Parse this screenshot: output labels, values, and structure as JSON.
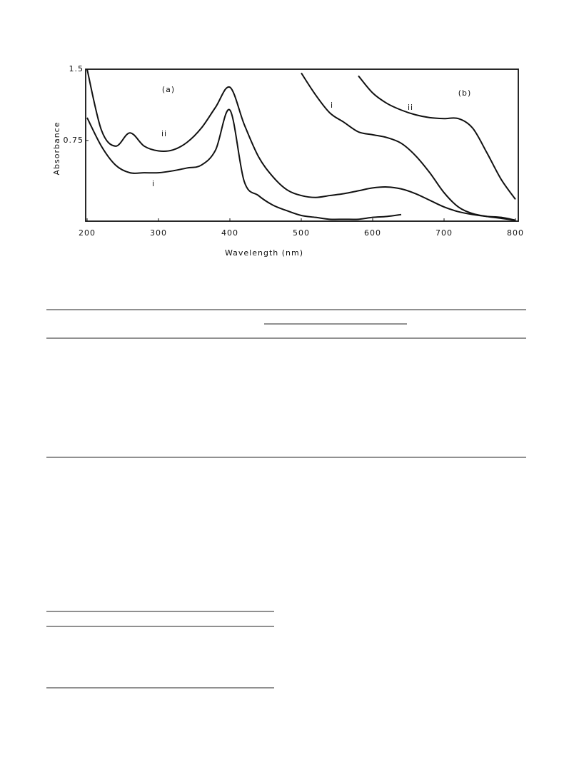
{
  "chart_data": {
    "type": "line",
    "xlabel": "Wavelength (nm)",
    "ylabel": "Absorbance",
    "annotations": [
      "(a)",
      "(b)"
    ],
    "x": [
      200,
      220,
      240,
      260,
      280,
      300,
      320,
      340,
      360,
      380,
      400,
      420,
      440,
      460,
      480,
      500,
      520,
      540,
      560,
      580,
      600,
      620,
      640,
      660,
      680,
      700,
      720,
      740,
      760,
      780,
      800
    ],
    "series": [
      {
        "name": "ii",
        "color": "#111111",
        "values": [
          1.5,
          0.86,
          0.69,
          0.83,
          0.69,
          0.64,
          0.65,
          0.73,
          0.88,
          1.1,
          1.31,
          0.92,
          0.58,
          0.37,
          0.23,
          0.17,
          0.15,
          0.17,
          0.19,
          0.22,
          0.25,
          0.26,
          0.24,
          0.19,
          0.12,
          0.05,
          0.0,
          -0.03,
          -0.05,
          -0.06,
          -0.09
        ]
      },
      {
        "name": "i",
        "color": "#111111",
        "values": [
          0.99,
          0.69,
          0.49,
          0.41,
          0.41,
          0.41,
          0.43,
          0.46,
          0.49,
          0.65,
          1.07,
          0.32,
          0.17,
          0.07,
          0.01,
          -0.04,
          -0.06,
          -0.08,
          -0.08,
          -0.08,
          -0.06,
          -0.05,
          -0.03,
          null,
          null,
          null,
          null,
          null,
          null,
          null,
          null
        ]
      },
      {
        "name": "i",
        "color": "#111111",
        "values": [
          null,
          null,
          null,
          null,
          null,
          null,
          null,
          null,
          null,
          null,
          null,
          null,
          null,
          null,
          null,
          1.46,
          1.23,
          1.04,
          0.94,
          0.84,
          0.81,
          0.78,
          0.72,
          0.59,
          0.41,
          0.2,
          0.05,
          -0.02,
          -0.05,
          -0.07,
          -0.09
        ]
      },
      {
        "name": "ii",
        "color": "#111111",
        "values": [
          null,
          null,
          null,
          null,
          null,
          null,
          null,
          null,
          null,
          null,
          null,
          null,
          null,
          null,
          null,
          null,
          null,
          null,
          null,
          1.43,
          1.25,
          1.14,
          1.07,
          1.02,
          0.99,
          0.98,
          0.98,
          0.88,
          0.62,
          0.34,
          0.13
        ]
      }
    ],
    "xlim": [
      198,
      804
    ],
    "ylim": [
      -0.1,
      1.5
    ],
    "xticks": [
      200,
      300,
      400,
      500,
      600,
      700,
      800
    ],
    "yticks": [
      1.5,
      0.75
    ]
  }
}
